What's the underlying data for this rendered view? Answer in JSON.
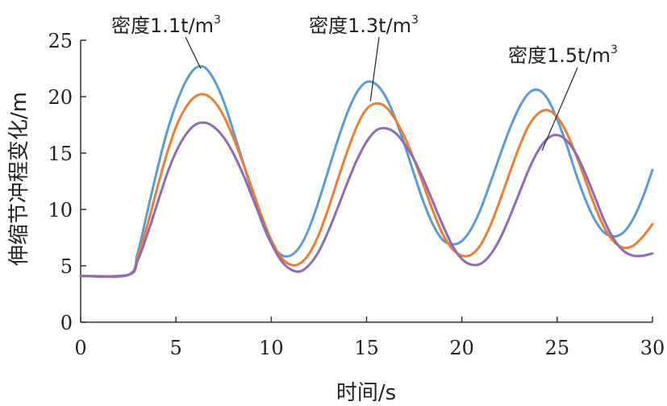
{
  "chart_data": {
    "type": "line",
    "xlabel": "时间/s",
    "ylabel": "伸缩节冲程变化/m",
    "xlim": [
      0,
      30
    ],
    "ylim": [
      0,
      25
    ],
    "xticks": [
      "0",
      "5",
      "10",
      "15",
      "20",
      "25",
      "30"
    ],
    "yticks": [
      "0",
      "5",
      "10",
      "15",
      "20",
      "25"
    ],
    "grid": false,
    "legend": "none",
    "series": [
      {
        "name": "密度1.1t/m³",
        "label_text": "密度1.1t/m",
        "label_sup": "3",
        "color": "#5B9BD5",
        "x": [
          0,
          2.5,
          3,
          3.5,
          4,
          4.5,
          5,
          5.5,
          6,
          6.5,
          7,
          7.5,
          8,
          8.5,
          9,
          9.5,
          10,
          10.5,
          11,
          11.5,
          12,
          12.5,
          13,
          13.5,
          14,
          14.5,
          15,
          15.5,
          16,
          16.5,
          17,
          17.5,
          18,
          18.5,
          19,
          19.5,
          20,
          20.5,
          21,
          21.5,
          22,
          22.5,
          23,
          23.5,
          24,
          24.5,
          25,
          25.5,
          26,
          26.5,
          27,
          27.5,
          28,
          28.5,
          29,
          29.5,
          30
        ],
        "y": [
          4.1,
          4.2,
          6.2,
          9.8,
          13.4,
          16.7,
          19.3,
          21.3,
          22.5,
          22.6,
          21.5,
          19.6,
          17.0,
          14.3,
          11.5,
          8.9,
          7.0,
          6.0,
          5.9,
          6.7,
          8.4,
          10.8,
          13.5,
          16.2,
          18.6,
          20.4,
          21.3,
          21.1,
          20.0,
          18.1,
          15.7,
          13.1,
          10.6,
          8.6,
          7.3,
          6.9,
          7.2,
          8.3,
          10.1,
          12.4,
          14.8,
          17.1,
          19.0,
          20.3,
          20.6,
          19.8,
          18.0,
          15.7,
          13.1,
          10.8,
          9.0,
          7.9,
          7.6,
          8.0,
          9.2,
          11.1,
          13.5
        ]
      },
      {
        "name": "密度1.3t/m³",
        "label_text": "密度1.3t/m",
        "label_sup": "3",
        "color": "#ED7D31",
        "x": [
          0,
          2.5,
          3,
          3.5,
          4,
          4.5,
          5,
          5.5,
          6,
          6.5,
          7,
          7.5,
          8,
          8.5,
          9,
          9.5,
          10,
          10.5,
          11,
          11.5,
          12,
          12.5,
          13,
          13.5,
          14,
          14.5,
          15,
          15.5,
          16,
          16.5,
          17,
          17.5,
          18,
          18.5,
          19,
          19.5,
          20,
          20.5,
          21,
          21.5,
          22,
          22.5,
          23,
          23.5,
          24,
          24.5,
          25,
          25.5,
          26,
          26.5,
          27,
          27.5,
          28,
          28.5,
          29,
          29.5,
          30
        ],
        "y": [
          4.1,
          4.2,
          5.8,
          8.6,
          11.8,
          14.8,
          17.3,
          19.0,
          20.0,
          20.2,
          19.6,
          18.3,
          16.4,
          14.2,
          11.8,
          9.4,
          7.3,
          5.8,
          5.1,
          5.2,
          6.1,
          7.8,
          10.1,
          12.7,
          15.2,
          17.4,
          18.9,
          19.4,
          19.1,
          18.0,
          16.4,
          14.4,
          12.1,
          9.8,
          7.8,
          6.5,
          5.9,
          6.0,
          6.9,
          8.6,
          10.8,
          13.2,
          15.5,
          17.4,
          18.5,
          18.8,
          18.2,
          16.8,
          14.8,
          12.5,
          10.2,
          8.3,
          7.1,
          6.6,
          6.8,
          7.6,
          8.7
        ]
      },
      {
        "name": "密度1.5t/m³",
        "label_text": "密度1.5t/m",
        "label_sup": "3",
        "color": "#8E6BB8",
        "x": [
          0,
          2.5,
          3,
          3.5,
          4,
          4.5,
          5,
          5.5,
          6,
          6.5,
          7,
          7.5,
          8,
          8.5,
          9,
          9.5,
          10,
          10.5,
          11,
          11.5,
          12,
          12.5,
          13,
          13.5,
          14,
          14.5,
          15,
          15.5,
          16,
          16.5,
          17,
          17.5,
          18,
          18.5,
          19,
          19.5,
          20,
          20.5,
          21,
          21.5,
          22,
          22.5,
          23,
          23.5,
          24,
          24.5,
          25,
          25.5,
          26,
          26.5,
          27,
          27.5,
          28,
          28.5,
          29,
          29.5,
          30
        ],
        "y": [
          4.1,
          4.2,
          5.5,
          7.8,
          10.4,
          13.0,
          15.1,
          16.6,
          17.5,
          17.7,
          17.3,
          16.4,
          15.0,
          13.2,
          11.1,
          9.0,
          7.0,
          5.5,
          4.7,
          4.5,
          5.1,
          6.3,
          8.1,
          10.2,
          12.4,
          14.4,
          16.0,
          17.0,
          17.2,
          16.8,
          15.8,
          14.4,
          12.6,
          10.6,
          8.6,
          6.8,
          5.6,
          5.1,
          5.2,
          6.0,
          7.4,
          9.3,
          11.4,
          13.5,
          15.2,
          16.3,
          16.6,
          16.1,
          14.9,
          13.1,
          11.0,
          8.9,
          7.3,
          6.3,
          5.9,
          5.9,
          6.1
        ]
      }
    ],
    "annotations": [
      {
        "series": 0,
        "anchor_x": 6.3,
        "anchor_y": 22.5
      },
      {
        "series": 1,
        "anchor_x": 15.2,
        "anchor_y": 19.6
      },
      {
        "series": 2,
        "anchor_x": 24.2,
        "anchor_y": 15.2
      }
    ]
  }
}
